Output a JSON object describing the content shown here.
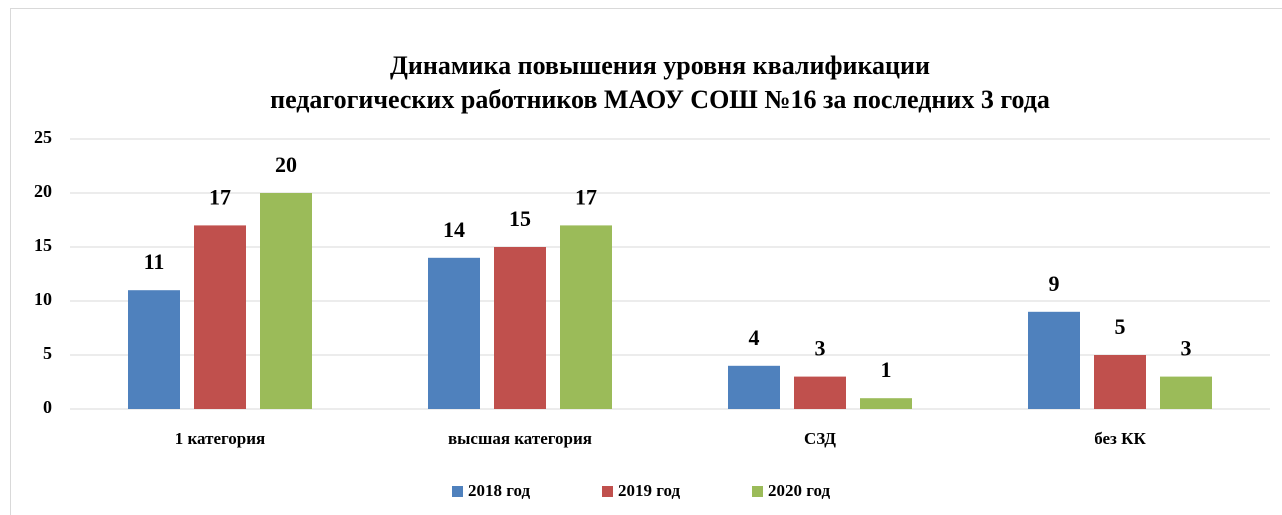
{
  "chart_data": {
    "type": "bar",
    "title": [
      "Динамика повышения уровня квалификации",
      "педагогических работников МАОУ СОШ №16 за последних 3 года"
    ],
    "categories": [
      "1 категория",
      "высшая категория",
      "СЗД",
      "без КК"
    ],
    "series": [
      {
        "name": "2018 год",
        "color": "#4f81bd",
        "values": [
          11,
          14,
          4,
          9
        ]
      },
      {
        "name": "2019 год",
        "color": "#c0504d",
        "values": [
          17,
          15,
          3,
          5
        ]
      },
      {
        "name": "2020 год",
        "color": "#9bbb59",
        "values": [
          20,
          17,
          1,
          3
        ]
      }
    ],
    "ylim": [
      0,
      25
    ],
    "yticks": [
      0,
      5,
      10,
      15,
      20,
      25
    ],
    "grid": true,
    "legend": "bottom"
  }
}
